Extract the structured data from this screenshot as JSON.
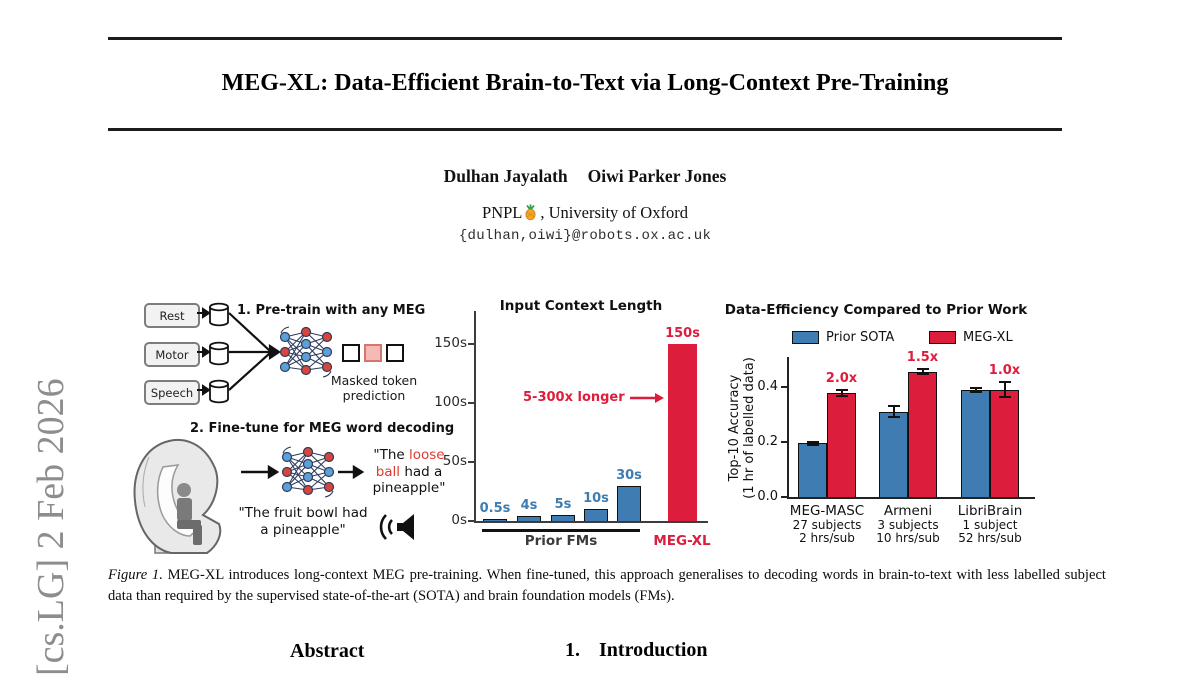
{
  "paper": {
    "watermark": "[cs.LG] 2 Feb 2026",
    "title": "MEG-XL: Data-Efficient Brain-to-Text via Long-Context Pre-Training",
    "authors": [
      "Dulhan Jayalath",
      "Oiwi Parker Jones"
    ],
    "affiliation_prefix": "PNPL",
    "affiliation_suffix": ", University of Oxford",
    "email": "{dulhan,oiwi}@robots.ox.ac.uk",
    "caption_label": "Figure 1.",
    "caption_text": "MEG-XL introduces long-context MEG pre-training. When fine-tuned, this approach generalises to decoding words in brain-to-text with less labelled subject data than required by the supervised state-of-the-art (SOTA) and brain foundation models (FMs).",
    "section_abstract": "Abstract",
    "section_intro_number": "1.",
    "section_intro_title": "Introduction"
  },
  "diagram": {
    "step1_label": "1. Pre-train with any MEG",
    "step2_label": "2. Fine-tune for MEG word decoding",
    "sources": [
      "Rest",
      "Motor",
      "Speech"
    ],
    "masked_caption_line1": "Masked token",
    "masked_caption_line2": "prediction",
    "decoded_segments": [
      {
        "text": "\"The ",
        "highlight": false
      },
      {
        "text": "loose ball",
        "highlight": true
      },
      {
        "text": " had a pineapple\"",
        "highlight": false
      }
    ],
    "stimulus_line1": "\"The fruit bowl had",
    "stimulus_line2": "a pineapple\"",
    "highlight_color": "#e03a30"
  },
  "chart_data": [
    {
      "type": "bar",
      "title": "Input Context Length",
      "bars": [
        {
          "label": "0.5s",
          "value": 0.5,
          "series": "prior"
        },
        {
          "label": "4s",
          "value": 4,
          "series": "prior"
        },
        {
          "label": "5s",
          "value": 5,
          "series": "prior"
        },
        {
          "label": "10s",
          "value": 10,
          "series": "prior"
        },
        {
          "label": "30s",
          "value": 30,
          "series": "prior"
        },
        {
          "label": "150s",
          "value": 150,
          "series": "ours"
        }
      ],
      "ytick_values": [
        0,
        50,
        100,
        150
      ],
      "ytick_labels": [
        "0s",
        "50s",
        "100s",
        "150s"
      ],
      "ylim": [
        0,
        175
      ],
      "annotation": "5-300x longer",
      "x_group_labels": {
        "prior": "Prior FMs",
        "ours": "MEG-XL"
      },
      "colors": {
        "prior": "#3e7cb1",
        "ours": "#dc1e3c"
      }
    },
    {
      "type": "grouped-bar",
      "title": "Data-Efficiency Compared to Prior Work",
      "ylabel_line1": "Top-10 Accuracy",
      "ylabel_line2": "(1 hr of labelled data)",
      "legend": [
        {
          "label": "Prior SOTA",
          "series": "sota"
        },
        {
          "label": "MEG-XL",
          "series": "ours"
        }
      ],
      "ytick_values": [
        0.0,
        0.2,
        0.4
      ],
      "ylim": [
        0,
        0.52
      ],
      "groups": [
        {
          "name": "MEG-MASC",
          "subjects": "27 subjects",
          "hours": "2 hrs/sub",
          "sota": 0.195,
          "sota_err": 0.005,
          "ours": 0.378,
          "ours_err": 0.012,
          "ratio": "2.0x"
        },
        {
          "name": "Armeni",
          "subjects": "3 subjects",
          "hours": "10 hrs/sub",
          "sota": 0.31,
          "sota_err": 0.02,
          "ours": 0.455,
          "ours_err": 0.009,
          "ratio": "1.5x"
        },
        {
          "name": "LibriBrain",
          "subjects": "1 subject",
          "hours": "52 hrs/sub",
          "sota": 0.39,
          "sota_err": 0.008,
          "ours": 0.39,
          "ours_err": 0.028,
          "ratio": "1.0x"
        }
      ],
      "colors": {
        "sota": "#3e7cb1",
        "ours": "#dc1e3c"
      }
    }
  ]
}
